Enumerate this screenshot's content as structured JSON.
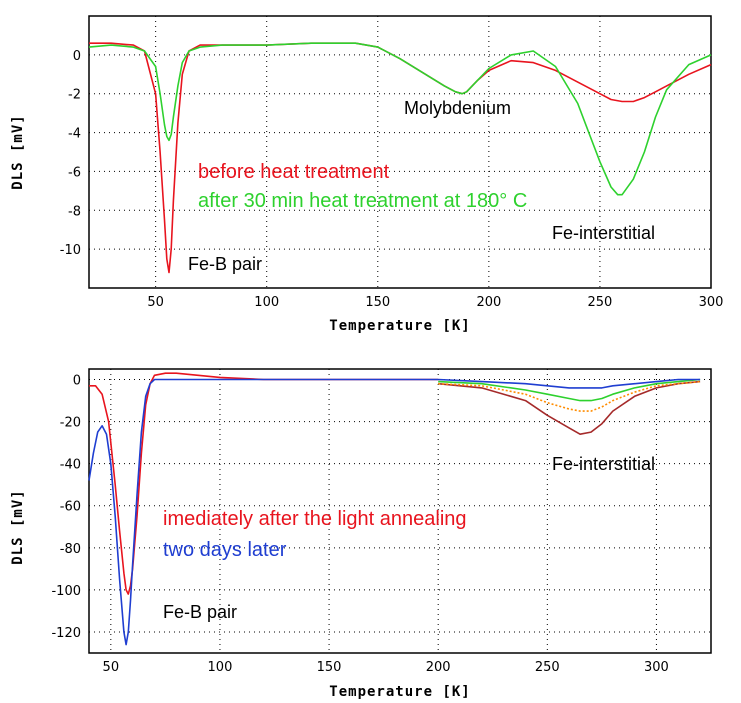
{
  "chart_data": [
    {
      "type": "line",
      "xlabel": "Temperature [K]",
      "ylabel": "DLS [mV]",
      "xlim": [
        20,
        300
      ],
      "ylim": [
        -12,
        2
      ],
      "xticks": [
        50,
        100,
        150,
        200,
        250,
        300
      ],
      "yticks": [
        0,
        -2,
        -4,
        -6,
        -8,
        -10
      ],
      "grid": true,
      "legend_placement": "center",
      "series": [
        {
          "name": "before heat treatment",
          "color": "#e8141e",
          "x": [
            20,
            30,
            40,
            45,
            50,
            52,
            54,
            55,
            56,
            57,
            58,
            60,
            62,
            65,
            70,
            80,
            100,
            120,
            140,
            150,
            160,
            170,
            180,
            185,
            188,
            190,
            195,
            200,
            210,
            220,
            230,
            240,
            250,
            255,
            260,
            265,
            270,
            275,
            280,
            290,
            300
          ],
          "y": [
            0.6,
            0.6,
            0.5,
            0.2,
            -2.0,
            -5.0,
            -8.5,
            -10.5,
            -11.2,
            -10.0,
            -7.5,
            -3.5,
            -1.0,
            0.2,
            0.5,
            0.5,
            0.5,
            0.6,
            0.6,
            0.4,
            -0.2,
            -0.9,
            -1.6,
            -1.9,
            -2.0,
            -1.9,
            -1.3,
            -0.8,
            -0.3,
            -0.4,
            -0.8,
            -1.4,
            -2.0,
            -2.3,
            -2.4,
            -2.4,
            -2.2,
            -1.9,
            -1.6,
            -1.0,
            -0.5
          ]
        },
        {
          "name": "after 30 min heat treatment at 180°  C",
          "color": "#2ed12e",
          "x": [
            20,
            30,
            40,
            45,
            50,
            52,
            54,
            55,
            56,
            57,
            58,
            60,
            62,
            65,
            70,
            80,
            100,
            120,
            140,
            150,
            160,
            170,
            180,
            185,
            188,
            190,
            195,
            200,
            210,
            220,
            230,
            240,
            245,
            250,
            255,
            258,
            260,
            265,
            270,
            275,
            280,
            290,
            300
          ],
          "y": [
            0.4,
            0.5,
            0.4,
            0.2,
            -0.6,
            -2.0,
            -3.6,
            -4.2,
            -4.4,
            -4.1,
            -3.2,
            -1.6,
            -0.4,
            0.2,
            0.4,
            0.5,
            0.5,
            0.6,
            0.6,
            0.4,
            -0.2,
            -0.9,
            -1.6,
            -1.9,
            -2.0,
            -1.9,
            -1.3,
            -0.7,
            0.0,
            0.2,
            -0.6,
            -2.5,
            -4.0,
            -5.5,
            -6.8,
            -7.2,
            -7.2,
            -6.4,
            -5.0,
            -3.2,
            -1.8,
            -0.5,
            0.0
          ]
        }
      ]
    },
    {
      "type": "line",
      "xlabel": "Temperature [K]",
      "ylabel": "DLS [mV]",
      "xlim": [
        40,
        325
      ],
      "ylim": [
        -130,
        5
      ],
      "xticks": [
        50,
        100,
        150,
        200,
        250,
        300
      ],
      "yticks": [
        0,
        -20,
        -40,
        -60,
        -80,
        -100,
        -120
      ],
      "grid": true,
      "legend_placement": "center",
      "series": [
        {
          "name": "imediately after the light annealing",
          "color": "#e8141e",
          "x": [
            40,
            43,
            46,
            49,
            52,
            54,
            56,
            57,
            58,
            59,
            60,
            62,
            64,
            66,
            68,
            70,
            75,
            80,
            90,
            100,
            120,
            150,
            180,
            200
          ],
          "y": [
            -3,
            -3,
            -7,
            -20,
            -50,
            -72,
            -92,
            -100,
            -102,
            -98,
            -90,
            -65,
            -35,
            -12,
            -2,
            2,
            3,
            3,
            2,
            1,
            0,
            0,
            0,
            0
          ]
        },
        {
          "name": "two days later",
          "color": "#1f3ed1",
          "x": [
            40,
            42,
            44,
            46,
            48,
            50,
            52,
            54,
            56,
            57,
            58,
            59,
            60,
            62,
            64,
            66,
            68,
            70,
            75,
            80,
            100,
            150,
            200
          ],
          "y": [
            -48,
            -35,
            -25,
            -22,
            -26,
            -40,
            -65,
            -95,
            -120,
            -126,
            -120,
            -105,
            -88,
            -55,
            -25,
            -8,
            -2,
            0,
            0,
            0,
            0,
            0,
            0
          ]
        },
        {
          "name": "",
          "color": "#a52a2a",
          "x": [
            200,
            220,
            240,
            250,
            260,
            265,
            270,
            275,
            280,
            290,
            300,
            310,
            320
          ],
          "y": [
            -2,
            -4,
            -10,
            -17,
            -23,
            -26,
            -25,
            -21,
            -15,
            -8,
            -4,
            -2,
            -1
          ]
        },
        {
          "name": "",
          "color": "#ff8c00",
          "x": [
            200,
            220,
            240,
            250,
            260,
            265,
            270,
            275,
            280,
            290,
            300,
            310,
            320
          ],
          "y": [
            -2,
            -3,
            -7,
            -11,
            -14,
            -15,
            -15,
            -13,
            -10,
            -6,
            -3,
            -2,
            -1
          ]
        },
        {
          "name": "",
          "color": "#2ed12e",
          "x": [
            200,
            220,
            240,
            250,
            260,
            265,
            270,
            275,
            280,
            290,
            300,
            310,
            320
          ],
          "y": [
            -1,
            -2,
            -5,
            -7,
            -9,
            -10,
            -10,
            -9,
            -7,
            -4,
            -2,
            -1,
            0
          ]
        },
        {
          "name": "",
          "color": "#1f3ed1",
          "x": [
            200,
            220,
            240,
            250,
            260,
            265,
            270,
            275,
            280,
            290,
            300,
            310,
            320
          ],
          "y": [
            0,
            -1,
            -2,
            -3,
            -4,
            -4,
            -4,
            -4,
            -3,
            -2,
            -1,
            0,
            0
          ]
        }
      ]
    }
  ],
  "annotations": {
    "top": {
      "molybdenum": "Molybdenium",
      "fe_interstitial": "Fe-interstitial",
      "fe_b_pair": "Fe-B pair"
    },
    "bottom": {
      "fe_interstitial": "Fe-interstitial",
      "fe_b_pair": "Fe-B pair"
    }
  }
}
